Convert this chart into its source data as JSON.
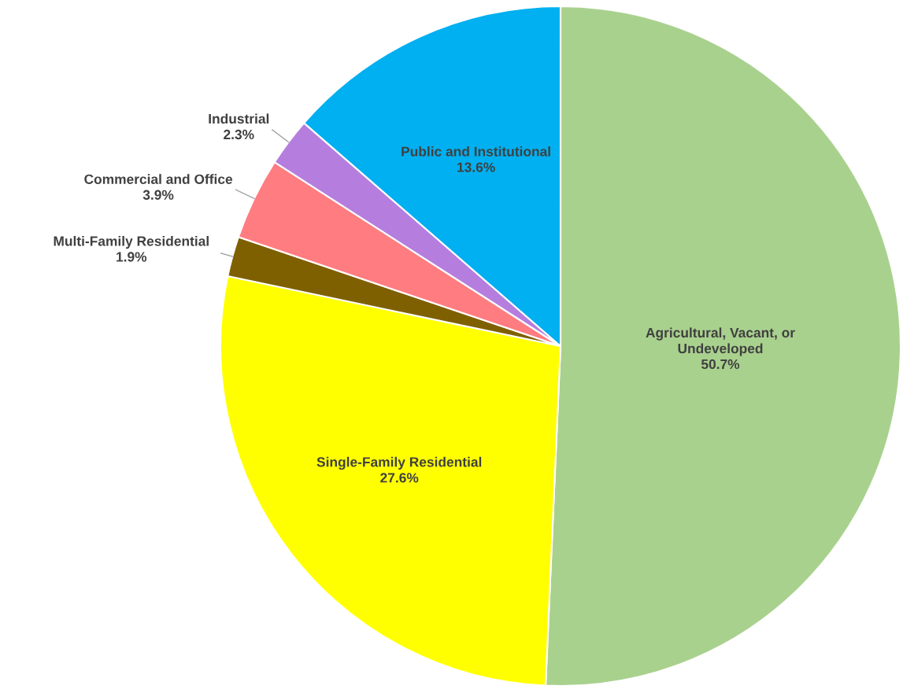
{
  "chart_data": {
    "type": "pie",
    "categories": [
      "Agricultural, Vacant, or\nUndeveloped",
      "Single-Family Residential",
      "Multi-Family Residential",
      "Commercial and Office",
      "Industrial",
      "Public and Institutional"
    ],
    "values": [
      50.7,
      27.6,
      1.9,
      3.9,
      2.3,
      13.6
    ],
    "value_labels": [
      "50.7%",
      "27.6%",
      "1.9%",
      "3.9%",
      "2.3%",
      "13.6%"
    ],
    "colors": [
      "#a9d18e",
      "#ffff00",
      "#7f6000",
      "#ff7c80",
      "#b57ede",
      "#00b0f0"
    ]
  }
}
